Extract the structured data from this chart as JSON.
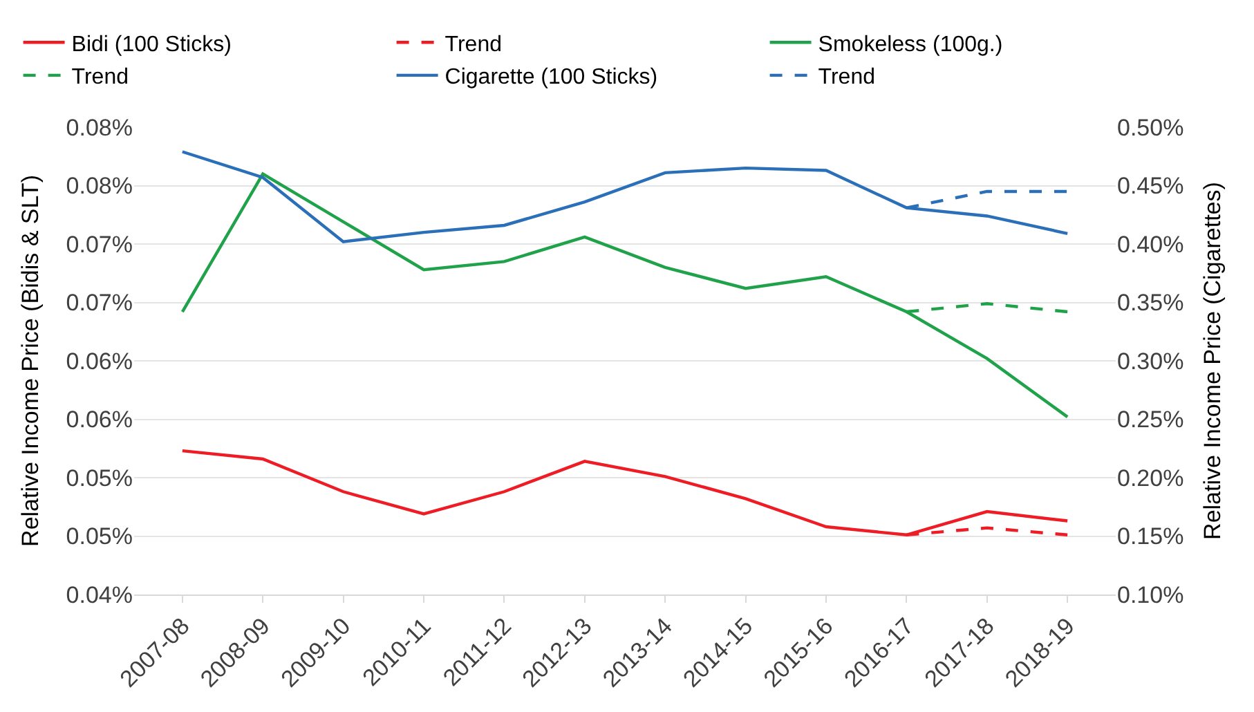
{
  "chart_data": {
    "type": "line",
    "ylabel": "Relative Income Price (Bidis & SLT)",
    "y2label": "Relative Income Price (Cigarettes)",
    "categories": [
      "2007-08",
      "2008-09",
      "2009-10",
      "2010-11",
      "2011-12",
      "2012-13",
      "2013-14",
      "2014-15",
      "2015-16",
      "2016-17",
      "2017-18",
      "2018-19"
    ],
    "series": [
      {
        "name": "Bidi (100 Sticks)",
        "color": "#ee1c25",
        "line_style": "solid",
        "values": [
          0.0523,
          0.0516,
          0.0488,
          0.0469,
          0.0488,
          0.0514,
          0.0501,
          0.0482,
          0.0458,
          0.0451,
          0.0471,
          0.0463
        ]
      },
      {
        "name": "Trend",
        "color": "#ee1c25",
        "line_style": "dashed",
        "values": [
          null,
          null,
          null,
          null,
          null,
          null,
          null,
          null,
          null,
          0.0451,
          0.0457,
          0.0451
        ]
      },
      {
        "name": "Smokeless (100g.)",
        "color": "#1fa24a",
        "line_style": "solid",
        "values": [
          0.0642,
          0.076,
          0.0719,
          0.0678,
          0.0685,
          0.0706,
          0.068,
          0.0662,
          0.0672,
          0.0642,
          0.0602,
          0.0552
        ]
      },
      {
        "name": "Trend",
        "color": "#1fa24a",
        "line_style": "dashed",
        "values": [
          null,
          null,
          null,
          null,
          null,
          null,
          null,
          null,
          null,
          0.0642,
          0.0649,
          0.0642
        ]
      },
      {
        "name": "Cigarette (100 Sticks)",
        "color": "#2a6fb8",
        "line_style": "solid",
        "axis": "y2",
        "values": [
          0.479,
          0.457,
          0.402,
          0.41,
          0.416,
          0.436,
          0.461,
          0.465,
          0.463,
          0.431,
          0.424,
          0.409
        ]
      },
      {
        "name": "Trend",
        "color": "#2a6fb8",
        "line_style": "dashed",
        "axis": "y2",
        "values": [
          null,
          null,
          null,
          null,
          null,
          null,
          null,
          null,
          null,
          0.431,
          0.445,
          0.445
        ]
      }
    ],
    "ylim": [
      0.04,
      0.08
    ],
    "yticks": [
      {
        "value": 0.04,
        "label": "0.04%"
      },
      {
        "value": 0.045,
        "label": "0.05%"
      },
      {
        "value": 0.05,
        "label": "0.05%"
      },
      {
        "value": 0.055,
        "label": "0.06%"
      },
      {
        "value": 0.06,
        "label": "0.06%"
      },
      {
        "value": 0.065,
        "label": "0.07%"
      },
      {
        "value": 0.07,
        "label": "0.07%"
      },
      {
        "value": 0.075,
        "label": "0.08%"
      },
      {
        "value": 0.08,
        "label": "0.08%"
      }
    ],
    "y2lim": [
      0.1,
      0.5
    ],
    "y2ticks": [
      {
        "value": 0.1,
        "label": "0.10%"
      },
      {
        "value": 0.15,
        "label": "0.15%"
      },
      {
        "value": 0.2,
        "label": "0.20%"
      },
      {
        "value": 0.25,
        "label": "0.25%"
      },
      {
        "value": 0.3,
        "label": "0.30%"
      },
      {
        "value": 0.35,
        "label": "0.35%"
      },
      {
        "value": 0.4,
        "label": "0.40%"
      },
      {
        "value": 0.45,
        "label": "0.45%"
      },
      {
        "value": 0.5,
        "label": "0.50%"
      }
    ],
    "grid": "y",
    "legend": "top",
    "marker": "none"
  }
}
